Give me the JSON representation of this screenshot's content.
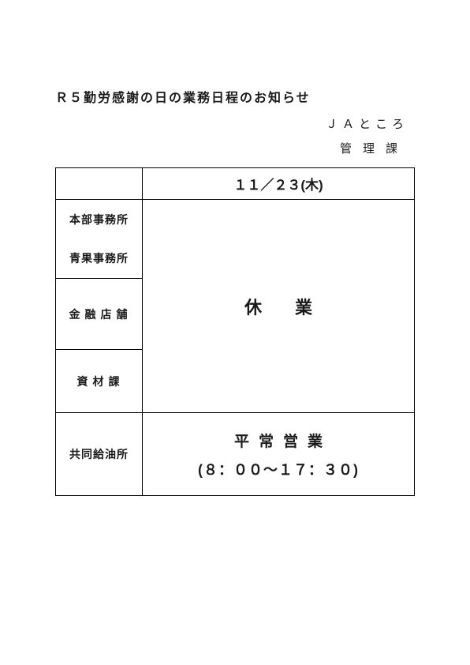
{
  "title": "Ｒ５勤労感謝の日の業務日程のお知らせ",
  "organization": "ＪＡところ",
  "department": "管理課",
  "schedule": {
    "date_header": "１１／２３(木)",
    "rows": {
      "honbu": "本部事務所",
      "seika": "青果事務所",
      "kinyu": "金融店舗",
      "shizai": "資材課",
      "kyodo": "共同給油所"
    },
    "closed_label": "休業",
    "normal": {
      "line1": "平常営業",
      "line2": "(８：００～１７：３０)"
    }
  },
  "style": {
    "border_color": "#000000",
    "text_color": "#1a1a1a",
    "background_color": "#ffffff",
    "title_fontsize_pt": 12,
    "header_fontsize_pt": 13,
    "body_fontsize_pt": 11,
    "closed_fontsize_pt": 16,
    "normal_fontsize_pt": 14
  }
}
